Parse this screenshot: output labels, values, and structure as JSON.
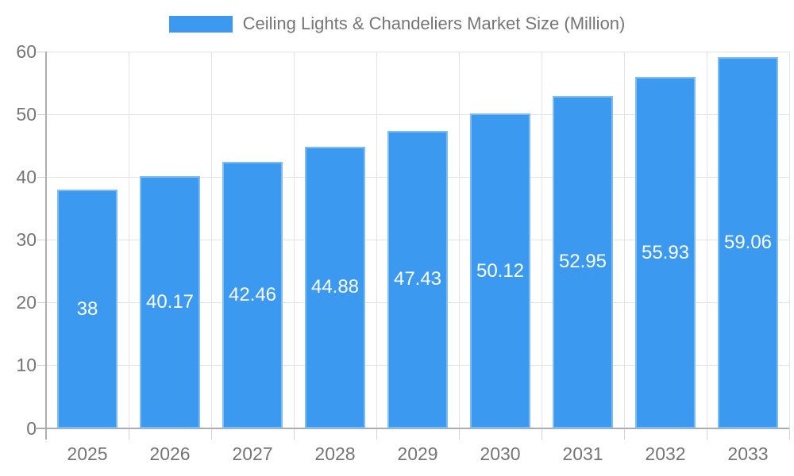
{
  "chart_data": {
    "type": "bar",
    "title": "Ceiling Lights & Chandeliers Market Size (Million)",
    "legend_position": "top",
    "categories": [
      "2025",
      "2026",
      "2027",
      "2028",
      "2029",
      "2030",
      "2031",
      "2032",
      "2033"
    ],
    "series": [
      {
        "name": "Ceiling Lights & Chandeliers Market Size (Million)",
        "values": [
          38,
          40.17,
          42.46,
          44.88,
          47.43,
          50.12,
          52.95,
          55.93,
          59.06
        ]
      }
    ],
    "xlabel": "",
    "ylabel": "",
    "ylim": [
      0,
      60
    ],
    "yticks": [
      0,
      10,
      20,
      30,
      40,
      50,
      60
    ],
    "grid": true,
    "value_labels_inside_bars": true,
    "colors": {
      "bar": "#3b99ef",
      "axis_text": "#757575",
      "grid_line": "#e3e3e3",
      "axis_line": "#adadad",
      "value_label": "#ffffff"
    }
  }
}
